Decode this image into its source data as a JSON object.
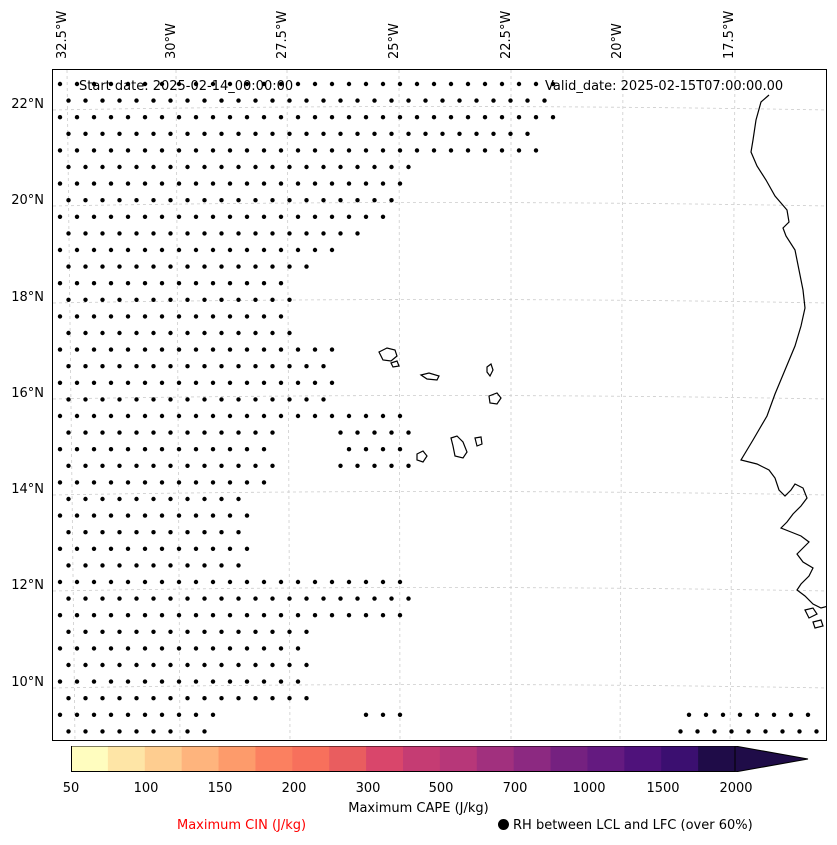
{
  "map": {
    "start_date": "Start date: 2025-02-14_00:00:00",
    "valid_date": "Valid_date: 2025-02-15T07:00:00.00",
    "lon_labels": [
      "32.5°W",
      "30°W",
      "27.5°W",
      "25°W",
      "22.5°W",
      "20°W",
      "17.5°W"
    ],
    "lat_labels": [
      "22°N",
      "20°N",
      "18°N",
      "16°N",
      "14°N",
      "12°N",
      "10°N"
    ],
    "dot_color": "#000000",
    "gridline_color": "#cccccc",
    "coastline_color": "#000000"
  },
  "colorbar": {
    "label": "Maximum CAPE (J/kg)",
    "tick_labels": [
      "50",
      "100",
      "150",
      "200",
      "300",
      "500",
      "700",
      "1000",
      "1500",
      "2000"
    ],
    "colors": [
      "#fffdbf",
      "#fee5a6",
      "#fecd90",
      "#feb47d",
      "#fd9b6b",
      "#fb8060",
      "#f7705c",
      "#e95d5f",
      "#d9466b",
      "#c53c73",
      "#b73779",
      "#a1307e",
      "#8c2981",
      "#752180",
      "#641a80",
      "#4f127b",
      "#3b0f70",
      "#1f0c48"
    ],
    "extend": "max"
  },
  "legend": {
    "cin_label": "Maximum CIN (J/kg)",
    "cin_color": "#ff0000",
    "rh_label": "RH between LCL and LFC (over 60%)"
  }
}
